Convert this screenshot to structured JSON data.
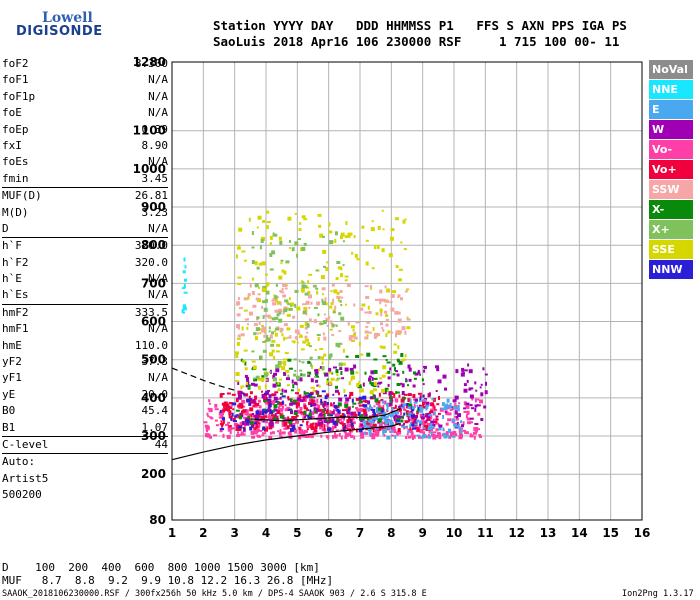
{
  "logo": {
    "line1": "Lowell",
    "line2": "DIGISONDE"
  },
  "header": {
    "row1": "Station YYYY DAY   DDD HHMMSS P1   FFS S AXN PPS IGA PS",
    "row2": "SaoLuis 2018 Apr16 106 230000 RSF     1 715 100 00- 11"
  },
  "params": [
    {
      "k": "foF2",
      "v": "8.300"
    },
    {
      "k": "foF1",
      "v": "N/A"
    },
    {
      "k": "foF1p",
      "v": "N/A"
    },
    {
      "k": "foE",
      "v": "N/A"
    },
    {
      "k": "foEp",
      "v": "0.39"
    },
    {
      "k": "fxI",
      "v": "8.90"
    },
    {
      "k": "foEs",
      "v": "N/A"
    },
    {
      "k": "fmin",
      "v": "3.45"
    },
    {
      "k": "MUF(D)",
      "v": "26.81",
      "sep": true
    },
    {
      "k": "M(D)",
      "v": "3.23"
    },
    {
      "k": "D",
      "v": "N/A"
    },
    {
      "k": "h`F",
      "v": "320.0",
      "sep": true
    },
    {
      "k": "h`F2",
      "v": "320.0"
    },
    {
      "k": "h`E",
      "v": "N/A"
    },
    {
      "k": "h`Es",
      "v": "N/A"
    },
    {
      "k": "hmF2",
      "v": "333.5",
      "sep": true
    },
    {
      "k": "hmF1",
      "v": "N/A"
    },
    {
      "k": "hmE",
      "v": "110.0"
    },
    {
      "k": "yF2",
      "v": "37.3"
    },
    {
      "k": "yF1",
      "v": "N/A"
    },
    {
      "k": "yE",
      "v": "20.0"
    },
    {
      "k": "B0",
      "v": "45.4"
    },
    {
      "k": "B1",
      "v": "1.07"
    },
    {
      "k": "C-level",
      "v": "44",
      "sep": true
    },
    {
      "k": "Auto:",
      "v": "",
      "sep": true
    },
    {
      "k": "Artist5",
      "v": ""
    },
    {
      "k": "500200",
      "v": ""
    }
  ],
  "legend": [
    {
      "label": "NoVal",
      "color": "#8c8c8c"
    },
    {
      "label": "NNE",
      "color": "#19e6ff"
    },
    {
      "label": "E",
      "color": "#4aa8f0"
    },
    {
      "label": "W",
      "color": "#a000b4"
    },
    {
      "label": "Vo-",
      "color": "#ff3fa8"
    },
    {
      "label": "Vo+",
      "color": "#f0003c"
    },
    {
      "label": "SSW",
      "color": "#f6a6a6"
    },
    {
      "label": "X-",
      "color": "#0a8a0a"
    },
    {
      "label": "X+",
      "color": "#7fc15a"
    },
    {
      "label": "SSE",
      "color": "#d6d600"
    },
    {
      "label": "NNW",
      "color": "#2a1ed6"
    }
  ],
  "bottom": {
    "d_row": "D    100  200  400  600  800 1000 1500 3000 [km]",
    "muf_row": "MUF   8.7  8.8  9.2  9.9 10.8 12.2 16.3 26.8 [MHz]",
    "footer_left": "SAAOK_2018106230000.RSF / 300fx256h 50 kHz 5.0 km / DPS-4 SAAOK 903 / 2.6 S 315.8 E",
    "footer_right": "Ion2Png 1.3.17"
  },
  "chart_data": {
    "type": "scatter",
    "xlim": [
      1,
      16
    ],
    "ylim": [
      80,
      1280
    ],
    "x_ticks": [
      1,
      2,
      3,
      4,
      5,
      6,
      7,
      8,
      9,
      10,
      11,
      12,
      13,
      14,
      15,
      16
    ],
    "y_ticks": [
      80,
      200,
      300,
      400,
      500,
      600,
      700,
      800,
      900,
      1000,
      1100,
      1280
    ],
    "grid": true,
    "legend_position": "right",
    "clusters": [
      {
        "name": "Vo-",
        "color": "#ff3fa8",
        "x": [
          2.0,
          10.8
        ],
        "y": [
          300,
          400
        ],
        "count": 520
      },
      {
        "name": "Vo+",
        "color": "#f0003c",
        "x": [
          2.5,
          9.5
        ],
        "y": [
          320,
          420
        ],
        "count": 320
      },
      {
        "name": "W",
        "color": "#a000b4",
        "x": [
          3.0,
          11.0
        ],
        "y": [
          330,
          490
        ],
        "count": 260
      },
      {
        "name": "E",
        "color": "#4aa8f0",
        "x": [
          7.0,
          10.2
        ],
        "y": [
          300,
          400
        ],
        "count": 120
      },
      {
        "name": "NNW",
        "color": "#2a1ed6",
        "x": [
          2.5,
          9.0
        ],
        "y": [
          320,
          420
        ],
        "count": 90
      },
      {
        "name": "X-",
        "color": "#0a8a0a",
        "x": [
          3.0,
          9.0
        ],
        "y": [
          340,
          520
        ],
        "count": 120
      },
      {
        "name": "SSE",
        "color": "#d6d600",
        "x": [
          3.0,
          8.5
        ],
        "y": [
          420,
          900
        ],
        "count": 280
      },
      {
        "name": "SSW",
        "color": "#f6a6a6",
        "x": [
          3.0,
          8.5
        ],
        "y": [
          560,
          700
        ],
        "count": 150
      },
      {
        "name": "X+",
        "color": "#7fc15a",
        "x": [
          3.5,
          6.5
        ],
        "y": [
          450,
          840
        ],
        "count": 120
      },
      {
        "name": "NNE",
        "color": "#19e6ff",
        "x": [
          1.3,
          1.4
        ],
        "y": [
          620,
          770
        ],
        "count": 12
      }
    ],
    "trace_virtual": {
      "x": [
        3.5,
        4.5,
        5.5,
        6.5,
        7.2,
        7.8,
        8.3
      ],
      "y": [
        345,
        340,
        345,
        350,
        348,
        355,
        372
      ]
    },
    "profile_lower": {
      "x": [
        1.0,
        2.0,
        3.0,
        4.0,
        5.0,
        6.0,
        7.0,
        8.0,
        8.3
      ],
      "y": [
        238,
        258,
        276,
        290,
        300,
        310,
        318,
        326,
        333
      ]
    },
    "profile_dashed": {
      "x": [
        1.0,
        1.5,
        2.0,
        2.5,
        3.0
      ],
      "y": [
        478,
        462,
        446,
        432,
        420
      ]
    }
  }
}
